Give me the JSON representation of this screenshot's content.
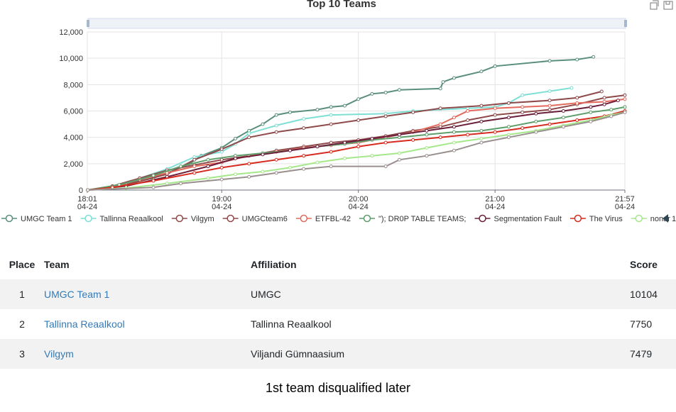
{
  "toolbox": {
    "icons": [
      "restore-icon",
      "save-image-icon"
    ]
  },
  "chart_data": {
    "type": "line",
    "title": "Top 10 Teams",
    "ylim": [
      0,
      12000
    ],
    "y_ticks": [
      "0",
      "2,000",
      "4,000",
      "6,000",
      "8,000",
      "10,000",
      "12,000"
    ],
    "x_range": [
      18.0167,
      21.95
    ],
    "x_ticks": [
      {
        "x": 18.0167,
        "time": "18:01",
        "date": "04-24"
      },
      {
        "x": 19.0,
        "time": "19:00",
        "date": "04-24"
      },
      {
        "x": 20.0,
        "time": "20:00",
        "date": "04-24"
      },
      {
        "x": 21.0,
        "time": "21:00",
        "date": "04-24"
      },
      {
        "x": 21.95,
        "time": "21:57",
        "date": "04-24"
      }
    ],
    "grid": true,
    "legend_position": "bottom",
    "legend_more": "1",
    "series": [
      {
        "name": "UMGC Team 1",
        "color": "#5a8f7b",
        "points": [
          [
            18.02,
            0
          ],
          [
            18.2,
            300
          ],
          [
            18.5,
            900
          ],
          [
            18.75,
            1900
          ],
          [
            18.85,
            2600
          ],
          [
            19.0,
            3200
          ],
          [
            19.1,
            3900
          ],
          [
            19.2,
            4500
          ],
          [
            19.3,
            5000
          ],
          [
            19.4,
            5700
          ],
          [
            19.5,
            5900
          ],
          [
            19.7,
            6100
          ],
          [
            19.8,
            6300
          ],
          [
            19.9,
            6400
          ],
          [
            20.0,
            6900
          ],
          [
            20.1,
            7300
          ],
          [
            20.2,
            7400
          ],
          [
            20.3,
            7600
          ],
          [
            20.6,
            7700
          ],
          [
            20.62,
            8200
          ],
          [
            20.7,
            8500
          ],
          [
            20.9,
            9000
          ],
          [
            21.0,
            9400
          ],
          [
            21.4,
            9800
          ],
          [
            21.6,
            9900
          ],
          [
            21.72,
            10104
          ]
        ]
      },
      {
        "name": "Tallinna Reaalkool",
        "color": "#7fdfd4",
        "points": [
          [
            18.02,
            0
          ],
          [
            18.2,
            200
          ],
          [
            18.4,
            900
          ],
          [
            18.6,
            1600
          ],
          [
            18.8,
            2500
          ],
          [
            19.0,
            2900
          ],
          [
            19.1,
            3500
          ],
          [
            19.2,
            4300
          ],
          [
            19.4,
            4900
          ],
          [
            19.6,
            5400
          ],
          [
            19.8,
            5700
          ],
          [
            20.2,
            5800
          ],
          [
            20.4,
            6000
          ],
          [
            20.8,
            6200
          ],
          [
            21.0,
            6300
          ],
          [
            21.1,
            6600
          ],
          [
            21.2,
            7200
          ],
          [
            21.4,
            7500
          ],
          [
            21.56,
            7750
          ]
        ]
      },
      {
        "name": "Vilgym",
        "color": "#8e4a4a",
        "points": [
          [
            18.02,
            0
          ],
          [
            18.3,
            400
          ],
          [
            18.6,
            1200
          ],
          [
            18.8,
            2300
          ],
          [
            19.0,
            3100
          ],
          [
            19.2,
            4000
          ],
          [
            19.4,
            4400
          ],
          [
            19.6,
            4700
          ],
          [
            19.8,
            5000
          ],
          [
            20.0,
            5300
          ],
          [
            20.2,
            5600
          ],
          [
            20.4,
            5900
          ],
          [
            20.6,
            6200
          ],
          [
            20.9,
            6400
          ],
          [
            21.1,
            6600
          ],
          [
            21.4,
            6800
          ],
          [
            21.6,
            7000
          ],
          [
            21.78,
            7479
          ]
        ]
      },
      {
        "name": "UMGCteam6",
        "color": "#8e4a4a",
        "points": [
          [
            18.02,
            0
          ],
          [
            18.2,
            300
          ],
          [
            18.4,
            900
          ],
          [
            18.6,
            1500
          ],
          [
            18.8,
            1900
          ],
          [
            19.0,
            2300
          ],
          [
            19.2,
            2600
          ],
          [
            19.4,
            3000
          ],
          [
            19.6,
            3300
          ],
          [
            19.8,
            3600
          ],
          [
            20.0,
            3800
          ],
          [
            20.2,
            4100
          ],
          [
            20.4,
            4500
          ],
          [
            20.6,
            4800
          ],
          [
            20.8,
            5300
          ],
          [
            21.0,
            5700
          ],
          [
            21.2,
            5900
          ],
          [
            21.4,
            6100
          ],
          [
            21.6,
            6500
          ],
          [
            21.8,
            7000
          ],
          [
            21.95,
            7200
          ]
        ]
      },
      {
        "name": "ETFBL-42",
        "color": "#e36a5c",
        "points": [
          [
            18.02,
            0
          ],
          [
            18.2,
            200
          ],
          [
            18.4,
            800
          ],
          [
            18.6,
            1300
          ],
          [
            18.8,
            1800
          ],
          [
            19.0,
            2100
          ],
          [
            19.2,
            2600
          ],
          [
            19.4,
            2900
          ],
          [
            19.6,
            3200
          ],
          [
            19.8,
            3400
          ],
          [
            20.0,
            3600
          ],
          [
            20.2,
            4000
          ],
          [
            20.4,
            4400
          ],
          [
            20.6,
            5000
          ],
          [
            20.7,
            5500
          ],
          [
            20.8,
            6000
          ],
          [
            21.0,
            6200
          ],
          [
            21.2,
            6300
          ],
          [
            21.4,
            6400
          ],
          [
            21.6,
            6600
          ],
          [
            21.8,
            6700
          ],
          [
            21.95,
            6900
          ]
        ]
      },
      {
        "name": "\"); DR0P TABLE TEAMS;",
        "color": "#5e9e6a",
        "points": [
          [
            18.02,
            0
          ],
          [
            18.25,
            400
          ],
          [
            18.5,
            1100
          ],
          [
            18.7,
            1800
          ],
          [
            18.9,
            2300
          ],
          [
            19.1,
            2600
          ],
          [
            19.3,
            2800
          ],
          [
            19.5,
            3000
          ],
          [
            19.7,
            3300
          ],
          [
            19.9,
            3500
          ],
          [
            20.1,
            3800
          ],
          [
            20.3,
            4000
          ],
          [
            20.5,
            4200
          ],
          [
            20.7,
            4400
          ],
          [
            20.9,
            4500
          ],
          [
            21.1,
            4800
          ],
          [
            21.3,
            5200
          ],
          [
            21.5,
            5500
          ],
          [
            21.7,
            5900
          ],
          [
            21.85,
            6100
          ],
          [
            21.95,
            6300
          ]
        ]
      },
      {
        "name": "Segmentation Fault",
        "color": "#6b1f3a",
        "points": [
          [
            18.02,
            0
          ],
          [
            18.3,
            300
          ],
          [
            18.6,
            1000
          ],
          [
            18.9,
            1800
          ],
          [
            19.1,
            2400
          ],
          [
            19.3,
            2700
          ],
          [
            19.5,
            3000
          ],
          [
            19.7,
            3300
          ],
          [
            19.9,
            3600
          ],
          [
            20.1,
            3900
          ],
          [
            20.3,
            4200
          ],
          [
            20.5,
            4500
          ],
          [
            20.7,
            4800
          ],
          [
            20.9,
            5200
          ],
          [
            21.1,
            5500
          ],
          [
            21.3,
            5800
          ],
          [
            21.5,
            6000
          ],
          [
            21.7,
            6300
          ],
          [
            21.8,
            6500
          ],
          [
            21.9,
            6800
          ]
        ]
      },
      {
        "name": "The Virus",
        "color": "#d62b1e",
        "points": [
          [
            18.02,
            0
          ],
          [
            18.2,
            200
          ],
          [
            18.5,
            700
          ],
          [
            18.8,
            1300
          ],
          [
            19.0,
            1700
          ],
          [
            19.2,
            2000
          ],
          [
            19.4,
            2300
          ],
          [
            19.6,
            2600
          ],
          [
            19.8,
            2900
          ],
          [
            20.0,
            3300
          ],
          [
            20.2,
            3600
          ],
          [
            20.4,
            3800
          ],
          [
            20.6,
            4000
          ],
          [
            20.8,
            4200
          ],
          [
            21.0,
            4400
          ],
          [
            21.2,
            4700
          ],
          [
            21.4,
            5000
          ],
          [
            21.6,
            5300
          ],
          [
            21.8,
            5600
          ],
          [
            21.95,
            6000
          ]
        ]
      },
      {
        "name": "nonar",
        "color": "#a5e88a",
        "points": [
          [
            18.02,
            0
          ],
          [
            18.3,
            150
          ],
          [
            18.6,
            500
          ],
          [
            18.9,
            900
          ],
          [
            19.1,
            1200
          ],
          [
            19.3,
            1400
          ],
          [
            19.5,
            1700
          ],
          [
            19.7,
            2100
          ],
          [
            19.9,
            2400
          ],
          [
            20.1,
            2600
          ],
          [
            20.3,
            2800
          ],
          [
            20.5,
            3200
          ],
          [
            20.7,
            3600
          ],
          [
            20.9,
            3900
          ],
          [
            21.1,
            4200
          ],
          [
            21.3,
            4500
          ],
          [
            21.5,
            4900
          ],
          [
            21.7,
            5300
          ],
          [
            21.85,
            5700
          ],
          [
            21.95,
            5900
          ]
        ]
      },
      {
        "name": "",
        "color": "#9a8f8f",
        "points": [
          [
            18.02,
            0
          ],
          [
            18.5,
            200
          ],
          [
            18.7,
            500
          ],
          [
            19.0,
            800
          ],
          [
            19.2,
            1000
          ],
          [
            19.4,
            1300
          ],
          [
            19.6,
            1600
          ],
          [
            19.8,
            1800
          ],
          [
            20.2,
            1800
          ],
          [
            20.3,
            2300
          ],
          [
            20.5,
            2600
          ],
          [
            20.7,
            3000
          ],
          [
            20.9,
            3600
          ],
          [
            21.1,
            4000
          ],
          [
            21.3,
            4400
          ],
          [
            21.5,
            4800
          ],
          [
            21.7,
            5200
          ],
          [
            21.85,
            5600
          ],
          [
            21.95,
            5900
          ]
        ]
      }
    ]
  },
  "table": {
    "headers": {
      "place": "Place",
      "team": "Team",
      "affiliation": "Affiliation",
      "score": "Score"
    },
    "rows": [
      {
        "place": "1",
        "team": "UMGC Team 1",
        "affiliation": "UMGC",
        "score": "10104"
      },
      {
        "place": "2",
        "team": "Tallinna Reaalkool",
        "affiliation": "Tallinna Reaalkool",
        "score": "7750"
      },
      {
        "place": "3",
        "team": "Vilgym",
        "affiliation": "Viljandi Gümnaasium",
        "score": "7479"
      }
    ]
  },
  "caption": "1st team disqualified later"
}
